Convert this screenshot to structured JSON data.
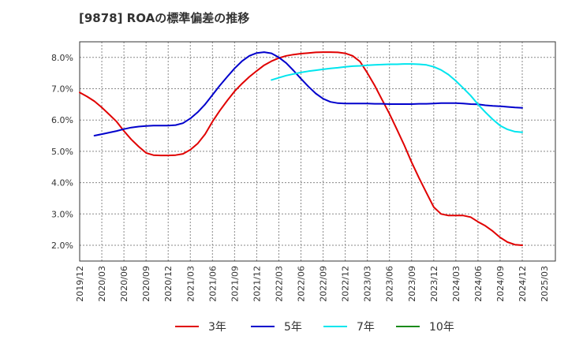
{
  "chart_data": {
    "type": "line",
    "title": "[9878]  ROAの標準偏差の推移",
    "xlabel": "",
    "ylabel": "",
    "x_ticks": [
      "2019/12",
      "2020/03",
      "2020/06",
      "2020/09",
      "2020/12",
      "2021/03",
      "2021/06",
      "2021/09",
      "2021/12",
      "2022/03",
      "2022/06",
      "2022/09",
      "2022/12",
      "2023/03",
      "2023/06",
      "2023/09",
      "2023/12",
      "2024/03",
      "2024/06",
      "2024/09",
      "2024/12",
      "2025/03"
    ],
    "y_ticks": [
      "2.0%",
      "3.0%",
      "4.0%",
      "5.0%",
      "6.0%",
      "7.0%",
      "8.0%"
    ],
    "ylim": [
      1.5,
      8.5
    ],
    "grid": true,
    "legend_position": "bottom",
    "series": [
      {
        "name": "3年",
        "color": "#e00000",
        "points": [
          [
            "2019/12",
            6.88
          ],
          [
            "2020/01",
            6.75
          ],
          [
            "2020/02",
            6.6
          ],
          [
            "2020/03",
            6.4
          ],
          [
            "2020/04",
            6.18
          ],
          [
            "2020/05",
            5.95
          ],
          [
            "2020/06",
            5.65
          ],
          [
            "2020/07",
            5.38
          ],
          [
            "2020/08",
            5.15
          ],
          [
            "2020/09",
            4.95
          ],
          [
            "2020/10",
            4.88
          ],
          [
            "2020/11",
            4.87
          ],
          [
            "2020/12",
            4.87
          ],
          [
            "2021/01",
            4.88
          ],
          [
            "2021/02",
            4.92
          ],
          [
            "2021/03",
            5.05
          ],
          [
            "2021/04",
            5.25
          ],
          [
            "2021/05",
            5.55
          ],
          [
            "2021/06",
            5.95
          ],
          [
            "2021/07",
            6.3
          ],
          [
            "2021/08",
            6.62
          ],
          [
            "2021/09",
            6.92
          ],
          [
            "2021/10",
            7.16
          ],
          [
            "2021/11",
            7.38
          ],
          [
            "2021/12",
            7.57
          ],
          [
            "2022/01",
            7.75
          ],
          [
            "2022/02",
            7.88
          ],
          [
            "2022/03",
            7.98
          ],
          [
            "2022/04",
            8.05
          ],
          [
            "2022/05",
            8.09
          ],
          [
            "2022/06",
            8.12
          ],
          [
            "2022/07",
            8.14
          ],
          [
            "2022/08",
            8.16
          ],
          [
            "2022/09",
            8.17
          ],
          [
            "2022/10",
            8.17
          ],
          [
            "2022/11",
            8.16
          ],
          [
            "2022/12",
            8.13
          ],
          [
            "2023/01",
            8.05
          ],
          [
            "2023/02",
            7.87
          ],
          [
            "2023/03",
            7.5
          ],
          [
            "2023/04",
            7.1
          ],
          [
            "2023/05",
            6.65
          ],
          [
            "2023/06",
            6.2
          ],
          [
            "2023/07",
            5.7
          ],
          [
            "2023/08",
            5.2
          ],
          [
            "2023/09",
            4.65
          ],
          [
            "2023/10",
            4.15
          ],
          [
            "2023/11",
            3.68
          ],
          [
            "2023/12",
            3.22
          ],
          [
            "2024/01",
            3.0
          ],
          [
            "2024/02",
            2.95
          ],
          [
            "2024/03",
            2.95
          ],
          [
            "2024/04",
            2.95
          ],
          [
            "2024/05",
            2.9
          ],
          [
            "2024/06",
            2.75
          ],
          [
            "2024/07",
            2.62
          ],
          [
            "2024/08",
            2.45
          ],
          [
            "2024/09",
            2.25
          ],
          [
            "2024/10",
            2.1
          ],
          [
            "2024/11",
            2.02
          ],
          [
            "2024/12",
            2.0
          ]
        ]
      },
      {
        "name": "5年",
        "color": "#0000cc",
        "points": [
          [
            "2020/02",
            5.5
          ],
          [
            "2020/03",
            5.55
          ],
          [
            "2020/04",
            5.6
          ],
          [
            "2020/05",
            5.65
          ],
          [
            "2020/06",
            5.71
          ],
          [
            "2020/07",
            5.76
          ],
          [
            "2020/08",
            5.79
          ],
          [
            "2020/09",
            5.81
          ],
          [
            "2020/10",
            5.82
          ],
          [
            "2020/11",
            5.82
          ],
          [
            "2020/12",
            5.82
          ],
          [
            "2021/01",
            5.84
          ],
          [
            "2021/02",
            5.9
          ],
          [
            "2021/03",
            6.05
          ],
          [
            "2021/04",
            6.25
          ],
          [
            "2021/05",
            6.5
          ],
          [
            "2021/06",
            6.8
          ],
          [
            "2021/07",
            7.1
          ],
          [
            "2021/08",
            7.38
          ],
          [
            "2021/09",
            7.65
          ],
          [
            "2021/10",
            7.88
          ],
          [
            "2021/11",
            8.05
          ],
          [
            "2021/12",
            8.14
          ],
          [
            "2022/01",
            8.17
          ],
          [
            "2022/02",
            8.13
          ],
          [
            "2022/03",
            8.0
          ],
          [
            "2022/04",
            7.82
          ],
          [
            "2022/05",
            7.58
          ],
          [
            "2022/06",
            7.32
          ],
          [
            "2022/07",
            7.07
          ],
          [
            "2022/08",
            6.85
          ],
          [
            "2022/09",
            6.68
          ],
          [
            "2022/10",
            6.58
          ],
          [
            "2022/11",
            6.54
          ],
          [
            "2022/12",
            6.53
          ],
          [
            "2023/01",
            6.53
          ],
          [
            "2023/02",
            6.53
          ],
          [
            "2023/03",
            6.53
          ],
          [
            "2023/04",
            6.52
          ],
          [
            "2023/05",
            6.52
          ],
          [
            "2023/06",
            6.51
          ],
          [
            "2023/07",
            6.51
          ],
          [
            "2023/08",
            6.51
          ],
          [
            "2023/09",
            6.51
          ],
          [
            "2023/10",
            6.52
          ],
          [
            "2023/11",
            6.52
          ],
          [
            "2023/12",
            6.53
          ],
          [
            "2024/01",
            6.54
          ],
          [
            "2024/02",
            6.54
          ],
          [
            "2024/03",
            6.54
          ],
          [
            "2024/04",
            6.53
          ],
          [
            "2024/05",
            6.51
          ],
          [
            "2024/06",
            6.5
          ],
          [
            "2024/07",
            6.47
          ],
          [
            "2024/08",
            6.45
          ],
          [
            "2024/09",
            6.44
          ],
          [
            "2024/10",
            6.42
          ],
          [
            "2024/11",
            6.4
          ],
          [
            "2024/12",
            6.39
          ]
        ]
      },
      {
        "name": "7年",
        "color": "#00e5ee",
        "points": [
          [
            "2022/02",
            7.28
          ],
          [
            "2022/03",
            7.35
          ],
          [
            "2022/04",
            7.42
          ],
          [
            "2022/05",
            7.47
          ],
          [
            "2022/06",
            7.52
          ],
          [
            "2022/07",
            7.56
          ],
          [
            "2022/08",
            7.59
          ],
          [
            "2022/09",
            7.62
          ],
          [
            "2022/10",
            7.65
          ],
          [
            "2022/11",
            7.67
          ],
          [
            "2022/12",
            7.7
          ],
          [
            "2023/01",
            7.72
          ],
          [
            "2023/02",
            7.73
          ],
          [
            "2023/03",
            7.75
          ],
          [
            "2023/04",
            7.76
          ],
          [
            "2023/05",
            7.77
          ],
          [
            "2023/06",
            7.78
          ],
          [
            "2023/07",
            7.78
          ],
          [
            "2023/08",
            7.79
          ],
          [
            "2023/09",
            7.79
          ],
          [
            "2023/10",
            7.78
          ],
          [
            "2023/11",
            7.76
          ],
          [
            "2023/12",
            7.7
          ],
          [
            "2024/01",
            7.6
          ],
          [
            "2024/02",
            7.45
          ],
          [
            "2024/03",
            7.25
          ],
          [
            "2024/04",
            7.02
          ],
          [
            "2024/05",
            6.78
          ],
          [
            "2024/06",
            6.5
          ],
          [
            "2024/07",
            6.25
          ],
          [
            "2024/08",
            6.02
          ],
          [
            "2024/09",
            5.82
          ],
          [
            "2024/10",
            5.7
          ],
          [
            "2024/11",
            5.63
          ],
          [
            "2024/12",
            5.61
          ]
        ]
      },
      {
        "name": "10年",
        "color": "#1a8a1a",
        "points": []
      }
    ]
  }
}
